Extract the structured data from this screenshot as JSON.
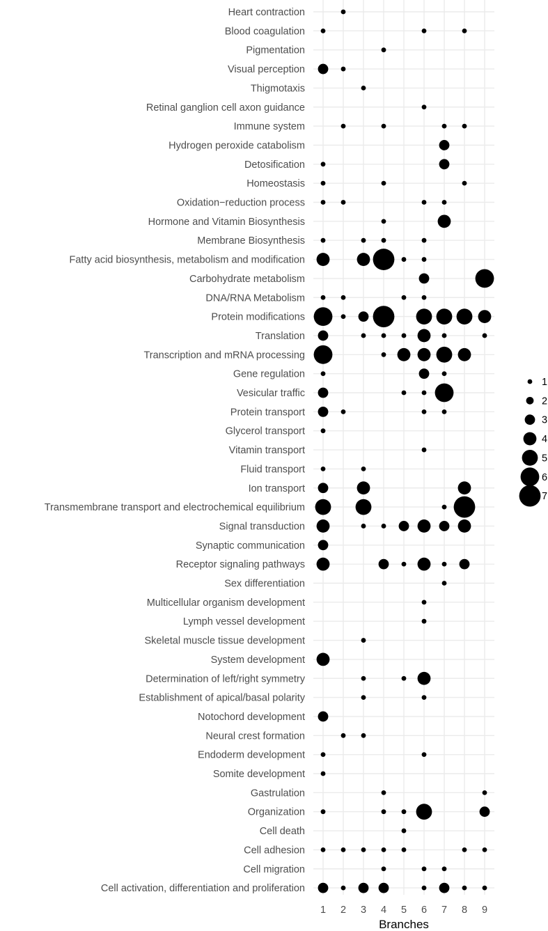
{
  "chart_data": {
    "type": "scatter",
    "xlabel": "Branches",
    "ylabel": "",
    "x_ticks": [
      1,
      2,
      3,
      4,
      5,
      6,
      7,
      8,
      9
    ],
    "xlim": [
      1,
      9
    ],
    "grid": true,
    "legend_position": "right",
    "size_legend": [
      1,
      2,
      3,
      4,
      5,
      6,
      7
    ],
    "point_color": "#000000",
    "grid_color": "#ebebeb",
    "categories": [
      "Heart contraction",
      "Blood coagulation",
      "Pigmentation",
      "Visual perception",
      "Thigmotaxis",
      "Retinal ganglion cell axon guidance",
      "Immune system",
      "Hydrogen peroxide catabolism",
      "Detosification",
      "Homeostasis",
      "Oxidation−reduction process",
      "Hormone and Vitamin Biosynthesis",
      "Membrane Biosynthesis",
      "Fatty acid biosynthesis, metabolism and modification",
      "Carbohydrate metabolism",
      "DNA/RNA Metabolism",
      "Protein modifications",
      "Translation",
      "Transcription and mRNA processing",
      "Gene regulation",
      "Vesicular traffic",
      "Protein transport",
      "Glycerol transport",
      "Vitamin transport",
      "Fluid transport",
      "Ion transport",
      "Transmembrane transport and electrochemical equilibrium",
      "Signal transduction",
      "Synaptic communication",
      "Receptor signaling pathways",
      "Sex differentiation",
      "Multicellular organism development",
      "Lymph vessel development",
      "Skeletal muscle tissue development",
      "System development",
      "Determination of left/right symmetry",
      "Establishment of apical/basal polarity",
      "Notochord development",
      "Neural crest formation",
      "Endoderm development",
      "Somite development",
      "Gastrulation",
      "Organization",
      "Cell death",
      "Cell adhesion",
      "Cell migration",
      "Cell activation, differentiation and proliferation"
    ],
    "points": [
      {
        "category": "Heart contraction",
        "values": {
          "2": 1
        }
      },
      {
        "category": "Blood coagulation",
        "values": {
          "1": 1,
          "6": 1,
          "8": 1
        }
      },
      {
        "category": "Pigmentation",
        "values": {
          "4": 1
        }
      },
      {
        "category": "Visual perception",
        "values": {
          "1": 3,
          "2": 1
        }
      },
      {
        "category": "Thigmotaxis",
        "values": {
          "3": 1
        }
      },
      {
        "category": "Retinal ganglion cell axon guidance",
        "values": {
          "6": 1
        }
      },
      {
        "category": "Immune system",
        "values": {
          "2": 1,
          "4": 1,
          "7": 1,
          "8": 1
        }
      },
      {
        "category": "Hydrogen peroxide catabolism",
        "values": {
          "7": 3
        }
      },
      {
        "category": "Detosification",
        "values": {
          "1": 1,
          "7": 3
        }
      },
      {
        "category": "Homeostasis",
        "values": {
          "1": 1,
          "4": 1,
          "8": 1
        }
      },
      {
        "category": "Oxidation−reduction process",
        "values": {
          "1": 1,
          "2": 1,
          "6": 1,
          "7": 1
        }
      },
      {
        "category": "Hormone and Vitamin Biosynthesis",
        "values": {
          "4": 1,
          "7": 4
        }
      },
      {
        "category": "Membrane Biosynthesis",
        "values": {
          "1": 1,
          "3": 1,
          "4": 1,
          "6": 1
        }
      },
      {
        "category": "Fatty acid biosynthesis, metabolism and modification",
        "values": {
          "1": 4,
          "3": 4,
          "4": 7,
          "5": 1,
          "6": 1
        }
      },
      {
        "category": "Carbohydrate metabolism",
        "values": {
          "6": 3,
          "9": 6
        }
      },
      {
        "category": "DNA/RNA Metabolism",
        "values": {
          "1": 1,
          "2": 1,
          "5": 1,
          "6": 1
        }
      },
      {
        "category": "Protein modifications",
        "values": {
          "1": 6,
          "2": 1,
          "3": 3,
          "4": 7,
          "6": 5,
          "7": 5,
          "8": 5,
          "9": 4
        }
      },
      {
        "category": "Translation",
        "values": {
          "1": 3,
          "3": 1,
          "4": 1,
          "5": 1,
          "6": 4,
          "7": 1,
          "9": 1
        }
      },
      {
        "category": "Transcription and mRNA processing",
        "values": {
          "1": 6,
          "4": 1,
          "5": 4,
          "6": 4,
          "7": 5,
          "8": 4
        }
      },
      {
        "category": "Gene regulation",
        "values": {
          "1": 1,
          "6": 3,
          "7": 1
        }
      },
      {
        "category": "Vesicular traffic",
        "values": {
          "1": 3,
          "5": 1,
          "6": 1,
          "7": 6
        }
      },
      {
        "category": "Protein transport",
        "values": {
          "1": 3,
          "2": 1,
          "6": 1,
          "7": 1
        }
      },
      {
        "category": "Glycerol transport",
        "values": {
          "1": 1
        }
      },
      {
        "category": "Vitamin transport",
        "values": {
          "6": 1
        }
      },
      {
        "category": "Fluid transport",
        "values": {
          "1": 1,
          "3": 1
        }
      },
      {
        "category": "Ion transport",
        "values": {
          "1": 3,
          "3": 4,
          "8": 4
        }
      },
      {
        "category": "Transmembrane transport and electrochemical equilibrium",
        "values": {
          "1": 5,
          "3": 5,
          "7": 1,
          "8": 7
        }
      },
      {
        "category": "Signal transduction",
        "values": {
          "1": 4,
          "3": 1,
          "4": 1,
          "5": 3,
          "6": 4,
          "7": 3,
          "8": 4
        }
      },
      {
        "category": "Synaptic communication",
        "values": {
          "1": 3
        }
      },
      {
        "category": "Receptor signaling pathways",
        "values": {
          "1": 4,
          "4": 3,
          "5": 1,
          "6": 4,
          "7": 1,
          "8": 3
        }
      },
      {
        "category": "Sex differentiation",
        "values": {
          "7": 1
        }
      },
      {
        "category": "Multicellular organism development",
        "values": {
          "6": 1
        }
      },
      {
        "category": "Lymph vessel development",
        "values": {
          "6": 1
        }
      },
      {
        "category": "Skeletal muscle tissue development",
        "values": {
          "3": 1
        }
      },
      {
        "category": "System development",
        "values": {
          "1": 4
        }
      },
      {
        "category": "Determination of left/right symmetry",
        "values": {
          "3": 1,
          "5": 1,
          "6": 4
        }
      },
      {
        "category": "Establishment of apical/basal polarity",
        "values": {
          "3": 1,
          "6": 1
        }
      },
      {
        "category": "Notochord development",
        "values": {
          "1": 3
        }
      },
      {
        "category": "Neural crest formation",
        "values": {
          "2": 1,
          "3": 1
        }
      },
      {
        "category": "Endoderm development",
        "values": {
          "1": 1,
          "6": 1
        }
      },
      {
        "category": "Somite development",
        "values": {
          "1": 1
        }
      },
      {
        "category": "Gastrulation",
        "values": {
          "4": 1,
          "9": 1
        }
      },
      {
        "category": "Organization",
        "values": {
          "1": 1,
          "4": 1,
          "5": 1,
          "6": 5,
          "9": 3
        }
      },
      {
        "category": "Cell death",
        "values": {
          "5": 1
        }
      },
      {
        "category": "Cell adhesion",
        "values": {
          "1": 1,
          "2": 1,
          "3": 1,
          "4": 1,
          "5": 1,
          "8": 1,
          "9": 1
        }
      },
      {
        "category": "Cell migration",
        "values": {
          "4": 1,
          "6": 1,
          "7": 1
        }
      },
      {
        "category": "Cell activation, differentiation and proliferation",
        "values": {
          "1": 3,
          "2": 1,
          "3": 3,
          "4": 3,
          "6": 1,
          "7": 3,
          "8": 1,
          "9": 1
        }
      }
    ]
  }
}
